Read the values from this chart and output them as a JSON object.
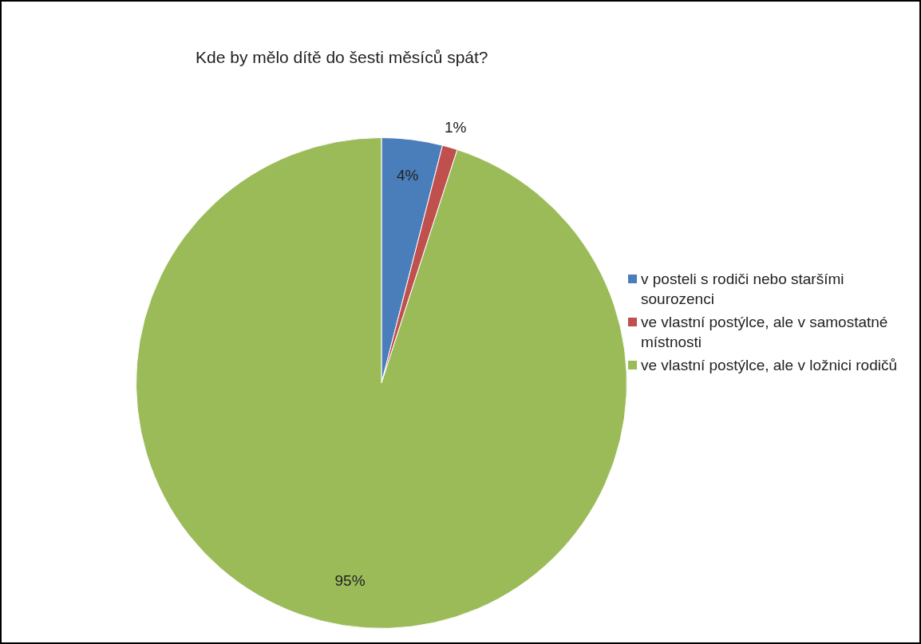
{
  "chart_data": {
    "type": "pie",
    "title": "Kde by mělo dítě do šesti měsíců spát?",
    "categories": [
      "v posteli s rodiči nebo staršími sourozenci",
      "ve vlastní postýlce, ale v samostatné místnosti",
      "ve vlastní postýlce, ale v ložnici rodičů"
    ],
    "values": [
      4,
      1,
      95
    ],
    "value_labels": [
      "4%",
      "1%",
      "95%"
    ],
    "colors": [
      "#4a7ebb",
      "#c0504d",
      "#9bbb59"
    ],
    "legend": "right"
  }
}
